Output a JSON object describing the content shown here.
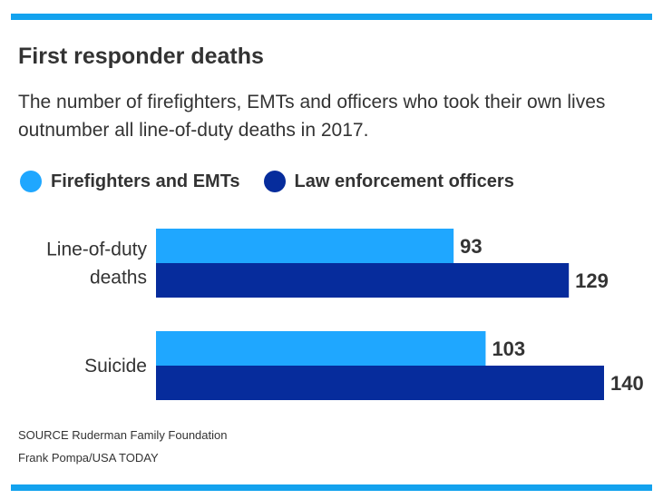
{
  "colors": {
    "accent": "#13a2ee",
    "firefighters": "#1fa7ff",
    "law_enforcement": "#062c9c",
    "text": "#333333"
  },
  "chart_data": {
    "type": "bar",
    "orientation": "horizontal",
    "title": "First responder deaths",
    "subtitle": "The number of firefighters, EMTs and officers who took their own lives outnumber all line-of-duty deaths in 2017.",
    "categories": [
      "Line-of-duty deaths",
      "Suicide"
    ],
    "category_lines": [
      [
        "Line-of-duty",
        "deaths"
      ],
      [
        "Suicide"
      ]
    ],
    "series": [
      {
        "name": "Firefighters and EMTs",
        "values": [
          93,
          103
        ],
        "color": "#1fa7ff"
      },
      {
        "name": "Law enforcement officers",
        "values": [
          129,
          140
        ],
        "color": "#062c9c"
      }
    ],
    "xlim": [
      0,
      140
    ],
    "grid": false,
    "legend_position": "top-left",
    "data_labels": true
  },
  "footer": {
    "source": "SOURCE Ruderman Family Foundation",
    "credit": "Frank Pompa/USA TODAY"
  }
}
